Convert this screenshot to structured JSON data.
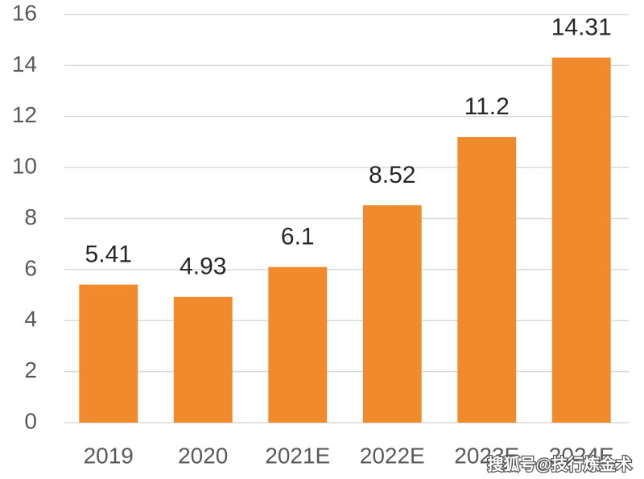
{
  "chart_data": {
    "type": "bar",
    "categories": [
      "2019",
      "2020",
      "2021E",
      "2022E",
      "2023E",
      "2024E"
    ],
    "values": [
      5.41,
      4.93,
      6.1,
      8.52,
      11.2,
      14.31
    ],
    "color": "#f08a2c",
    "ylim": [
      0,
      16
    ],
    "yticks": [
      0,
      2,
      4,
      6,
      8,
      10,
      12,
      14,
      16
    ],
    "grid": true,
    "watermark": "搜狐号@技行炼金术"
  }
}
